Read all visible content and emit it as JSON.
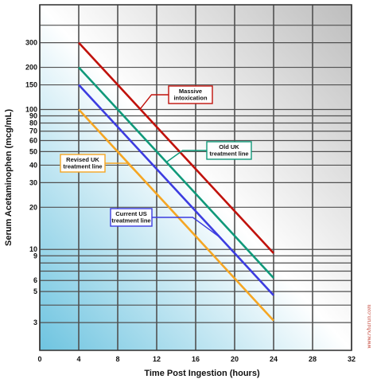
{
  "chart_data": {
    "type": "line",
    "xlabel": "Time Post Ingestion (hours)",
    "ylabel": "Serum Acetaminophen (mcg/mL)",
    "x_ticks": [
      0,
      4,
      8,
      12,
      16,
      20,
      24,
      28,
      32
    ],
    "xlim": [
      0,
      32
    ],
    "y_scale": "log",
    "y_tick_labels": [
      3,
      5,
      6,
      9,
      10,
      20,
      30,
      40,
      50,
      60,
      70,
      80,
      90,
      100,
      150,
      200,
      300
    ],
    "y_gridlines": [
      3,
      4,
      5,
      6,
      7,
      8,
      9,
      10,
      20,
      30,
      40,
      50,
      60,
      70,
      80,
      90,
      100,
      150,
      200,
      300,
      400
    ],
    "ylim": [
      1.9,
      560
    ],
    "grid": true,
    "series": [
      {
        "name": "Massive intoxication",
        "color": "#c0120c",
        "x": [
          4,
          24
        ],
        "y": [
          300,
          9.4
        ]
      },
      {
        "name": "Old UK treatment line",
        "color": "#10997a",
        "x": [
          4,
          24
        ],
        "y": [
          200,
          6.25
        ]
      },
      {
        "name": "Current US treatment line",
        "color": "#3c3ce0",
        "x": [
          4,
          24
        ],
        "y": [
          150,
          4.7
        ]
      },
      {
        "name": "Revised UK treatment line",
        "color": "#f5a623",
        "x": [
          4,
          24
        ],
        "y": [
          100,
          3.1
        ]
      }
    ],
    "annotations": [
      {
        "series": 0,
        "lines": [
          "Massive",
          "intoxication"
        ],
        "border_color": "#c0120c",
        "point_x": 10.3,
        "box_side": "right"
      },
      {
        "series": 1,
        "lines": [
          "Old UK",
          "treatment line"
        ],
        "border_color": "#10997a",
        "point_x": 13,
        "box_side": "right"
      },
      {
        "series": 2,
        "lines": [
          "Current US",
          "treatment line"
        ],
        "border_color": "#3c3ce0",
        "point_x": 18.5,
        "box_side": "left"
      },
      {
        "series": 3,
        "lines": [
          "Revised UK",
          "treatment line"
        ],
        "border_color": "#f5a623",
        "point_x": 10.5,
        "box_side": "left"
      }
    ],
    "watermark": "www.rxharun.com"
  }
}
